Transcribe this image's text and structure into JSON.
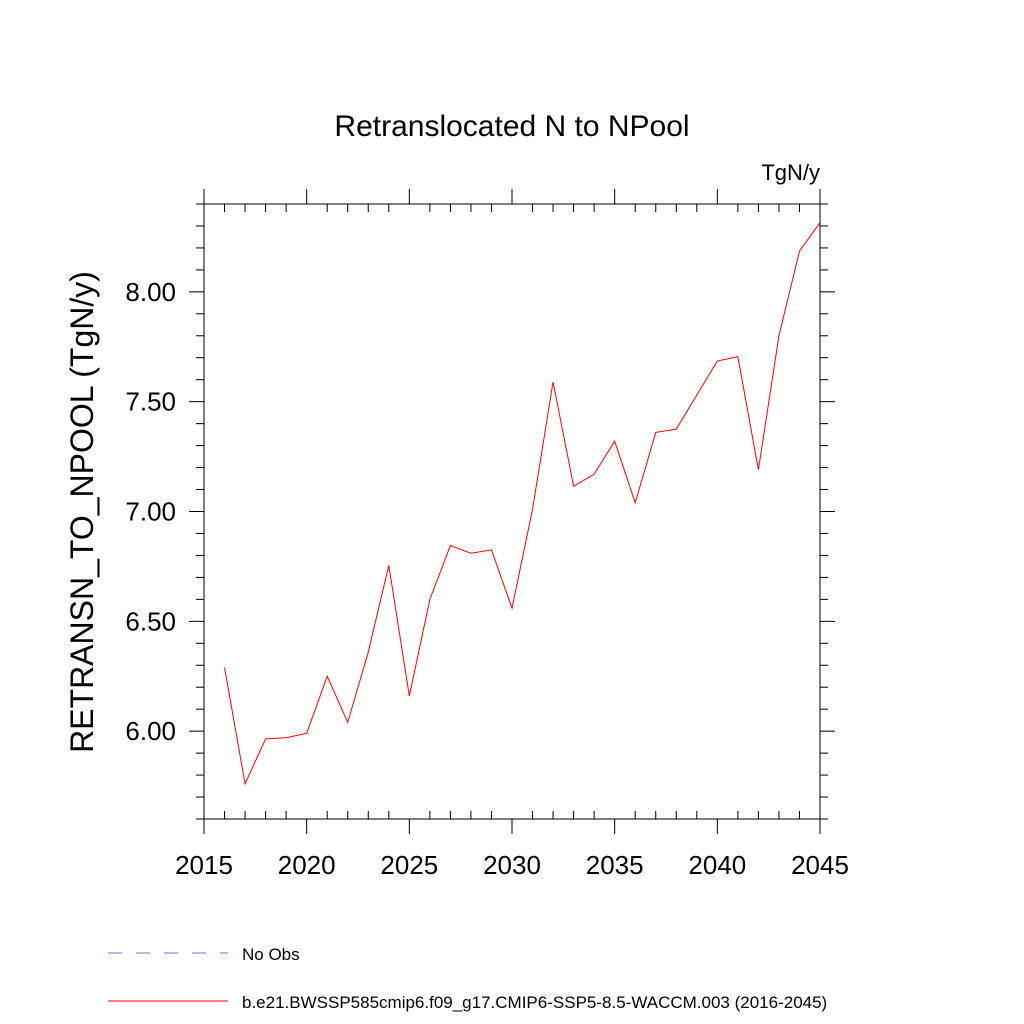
{
  "chart_data": {
    "type": "line",
    "title": "Retranslocated N to NPool",
    "units_label": "TgN/y",
    "xlabel": "",
    "ylabel": "RETRANSN_TO_NPOOL  (TgN/y)",
    "xlim": [
      2015,
      2045
    ],
    "ylim": [
      5.6,
      8.4
    ],
    "x_ticks": [
      2015,
      2020,
      2025,
      2030,
      2035,
      2040,
      2045
    ],
    "x_tick_labels": [
      "2015",
      "2020",
      "2025",
      "2030",
      "2035",
      "2040",
      "2045"
    ],
    "y_ticks": [
      6.0,
      6.5,
      7.0,
      7.5,
      8.0
    ],
    "y_tick_labels": [
      "6.00",
      "6.50",
      "7.00",
      "7.50",
      "8.00"
    ],
    "y_minor_step": 0.1,
    "x_minor_step": 1,
    "grid": false,
    "series": [
      {
        "name": "b.e21.BWSSP585cmip6.f09_g17.CMIP6-SSP5-8.5-WACCM.003 (2016-2045)",
        "color": "#ff0000",
        "style": "solid",
        "x": [
          2016,
          2017,
          2018,
          2019,
          2020,
          2021,
          2022,
          2023,
          2024,
          2025,
          2026,
          2027,
          2028,
          2029,
          2030,
          2031,
          2032,
          2033,
          2034,
          2035,
          2036,
          2037,
          2038,
          2039,
          2040,
          2041,
          2042,
          2043,
          2044,
          2045
        ],
        "values": [
          6.29,
          5.76,
          5.965,
          5.97,
          5.99,
          6.25,
          6.04,
          6.36,
          6.755,
          6.16,
          6.6,
          6.845,
          6.81,
          6.825,
          6.56,
          7.01,
          7.59,
          7.115,
          7.17,
          7.32,
          7.04,
          7.36,
          7.375,
          7.53,
          7.685,
          7.705,
          7.19,
          7.8,
          8.185,
          8.315
        ]
      },
      {
        "name": "No Obs",
        "color": "#7b6fd0",
        "style": "dashed",
        "x": [],
        "values": []
      }
    ]
  },
  "legend": [
    {
      "label": "No Obs",
      "color": "#7b6fd0",
      "style": "dashed"
    },
    {
      "label": "b.e21.BWSSP585cmip6.f09_g17.CMIP6-SSP5-8.5-WACCM.003 (2016-2045)",
      "color": "#ff0000",
      "style": "solid"
    }
  ]
}
